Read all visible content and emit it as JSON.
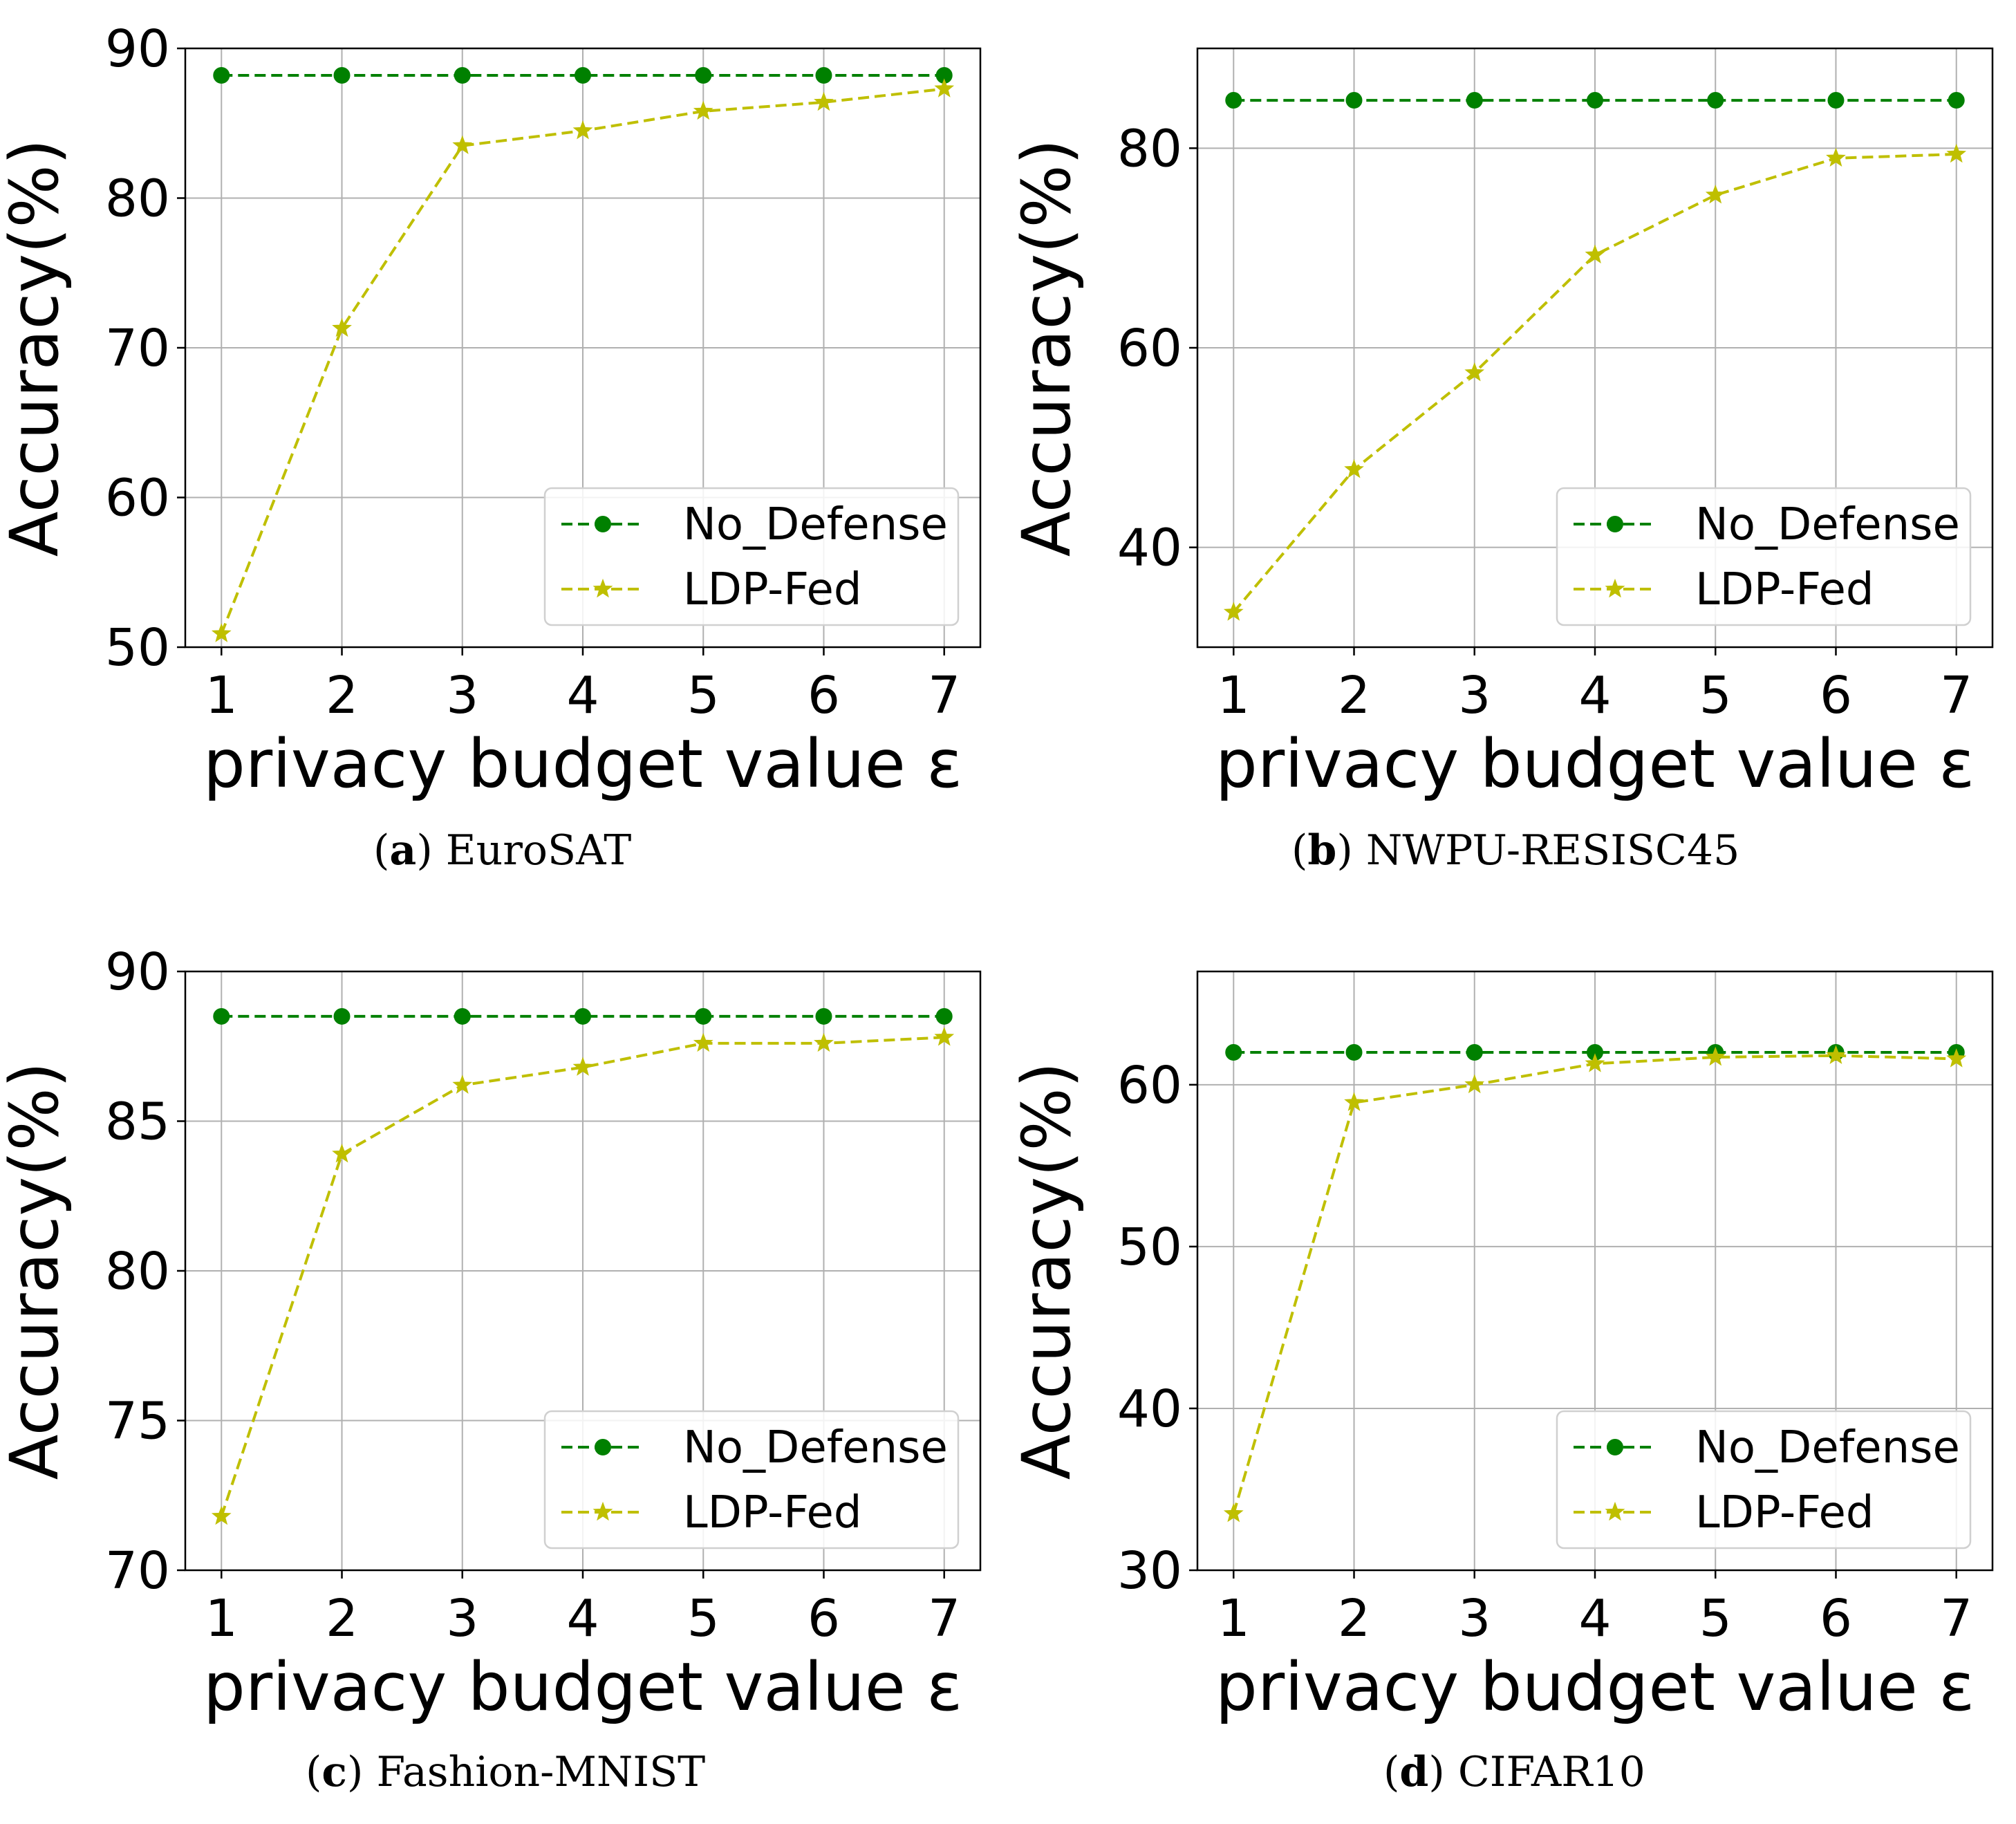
{
  "figure": {
    "colors": {
      "no_defense": "#008000",
      "ldp_fed": "#bfbf00",
      "grid": "#b0b0b0",
      "axes": "#000000"
    }
  },
  "chart_data": [
    {
      "id": "a",
      "type": "line",
      "caption_letter": "a",
      "caption_name": "EuroSAT",
      "xlabel": "privacy budget value ε",
      "ylabel": "Accuracy(%)",
      "x": [
        1,
        2,
        3,
        4,
        5,
        6,
        7
      ],
      "xlim": [
        0.7,
        7.3
      ],
      "ylim": [
        50,
        90
      ],
      "yticks": [
        50,
        60,
        70,
        80,
        90
      ],
      "legend_position": "lower-right",
      "grid": true,
      "series": [
        {
          "name": "No_Defense",
          "marker": "circle",
          "values": [
            88.2,
            88.2,
            88.2,
            88.2,
            88.2,
            88.2,
            88.2
          ]
        },
        {
          "name": "LDP-Fed",
          "marker": "star",
          "values": [
            50.9,
            71.3,
            83.5,
            84.5,
            85.8,
            86.4,
            87.3
          ]
        }
      ]
    },
    {
      "id": "b",
      "type": "line",
      "caption_letter": "b",
      "caption_name": "NWPU-RESISC45",
      "xlabel": "privacy budget value ε",
      "ylabel": "Accuracy(%)",
      "x": [
        1,
        2,
        3,
        4,
        5,
        6,
        7
      ],
      "xlim": [
        0.7,
        7.3
      ],
      "ylim": [
        30,
        90
      ],
      "yticks": [
        40,
        60,
        80
      ],
      "legend_position": "lower-right",
      "grid": true,
      "series": [
        {
          "name": "No_Defense",
          "marker": "circle",
          "values": [
            84.8,
            84.8,
            84.8,
            84.8,
            84.8,
            84.8,
            84.8
          ]
        },
        {
          "name": "LDP-Fed",
          "marker": "star",
          "values": [
            33.5,
            47.8,
            57.5,
            69.3,
            75.3,
            79.0,
            79.4
          ]
        }
      ]
    },
    {
      "id": "c",
      "type": "line",
      "caption_letter": "c",
      "caption_name": "Fashion-MNIST",
      "xlabel": "privacy budget value ε",
      "ylabel": "Accuracy(%)",
      "x": [
        1,
        2,
        3,
        4,
        5,
        6,
        7
      ],
      "xlim": [
        0.7,
        7.3
      ],
      "ylim": [
        70,
        90
      ],
      "yticks": [
        70,
        75,
        80,
        85,
        90
      ],
      "legend_position": "lower-right",
      "grid": true,
      "series": [
        {
          "name": "No_Defense",
          "marker": "circle",
          "values": [
            88.5,
            88.5,
            88.5,
            88.5,
            88.5,
            88.5,
            88.5
          ]
        },
        {
          "name": "LDP-Fed",
          "marker": "star",
          "values": [
            71.8,
            83.9,
            86.2,
            86.8,
            87.6,
            87.6,
            87.8
          ]
        }
      ]
    },
    {
      "id": "d",
      "type": "line",
      "caption_letter": "d",
      "caption_name": "CIFAR10",
      "xlabel": "privacy budget value ε",
      "ylabel": "Accuracy(%)",
      "x": [
        1,
        2,
        3,
        4,
        5,
        6,
        7
      ],
      "xlim": [
        0.7,
        7.3
      ],
      "ylim": [
        30,
        67
      ],
      "yticks": [
        30,
        40,
        50,
        60
      ],
      "legend_position": "lower-right",
      "grid": true,
      "series": [
        {
          "name": "No_Defense",
          "marker": "circle",
          "values": [
            62.0,
            62.0,
            62.0,
            62.0,
            62.0,
            62.0,
            62.0
          ]
        },
        {
          "name": "LDP-Fed",
          "marker": "star",
          "values": [
            33.5,
            58.9,
            60.0,
            61.3,
            61.7,
            61.8,
            61.6
          ]
        }
      ]
    }
  ]
}
